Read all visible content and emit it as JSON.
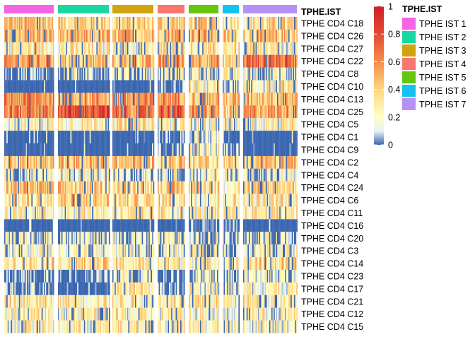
{
  "chart_data": {
    "type": "heatmap",
    "annotation_title": "TPHE.IST",
    "rows": [
      "TPHE CD4 C18",
      "TPHE CD4 C26",
      "TPHE CD4 C27",
      "TPHE CD4 C22",
      "TPHE CD4 C8",
      "TPHE CD4 C10",
      "TPHE CD4 C13",
      "TPHE CD4 C25",
      "TPHE CD4 C5",
      "TPHE CD4 C1",
      "TPHE CD4 C9",
      "TPHE CD4 C2",
      "TPHE CD4 C4",
      "TPHE CD4 C24",
      "TPHE CD4 C6",
      "TPHE CD4 C11",
      "TPHE CD4 C16",
      "TPHE CD4 C20",
      "TPHE CD4 C3",
      "TPHE CD4 C14",
      "TPHE CD4 C23",
      "TPHE CD4 C17",
      "TPHE CD4 C21",
      "TPHE CD4 C12",
      "TPHE CD4 C15"
    ],
    "groups": [
      {
        "name": "TPHE IST 1",
        "color": "#F564E3"
      },
      {
        "name": "TPHE IST 2",
        "color": "#19D7A0"
      },
      {
        "name": "TPHE IST 3",
        "color": "#D4A20E"
      },
      {
        "name": "TPHE IST 4",
        "color": "#F8766D"
      },
      {
        "name": "TPHE IST 5",
        "color": "#64C60F"
      },
      {
        "name": "TPHE IST 6",
        "color": "#13C2F1"
      },
      {
        "name": "TPHE IST 7",
        "color": "#B591F7"
      }
    ],
    "row_means": [
      [
        0.45,
        0.4,
        0.38,
        0.42,
        0.4,
        0.35,
        0.35
      ],
      [
        0.5,
        0.45,
        0.45,
        0.52,
        0.5,
        0.4,
        0.42
      ],
      [
        0.3,
        0.28,
        0.25,
        0.3,
        0.28,
        0.3,
        0.25
      ],
      [
        0.55,
        0.45,
        0.45,
        0.55,
        0.55,
        0.4,
        0.7
      ],
      [
        0.08,
        0.12,
        0.12,
        0.15,
        0.18,
        0.2,
        0.15
      ],
      [
        0.0,
        0.0,
        0.0,
        0.05,
        0.25,
        0.1,
        0.25
      ],
      [
        0.6,
        0.55,
        0.55,
        0.6,
        0.5,
        0.45,
        0.5
      ],
      [
        0.65,
        0.8,
        0.65,
        0.75,
        0.55,
        0.4,
        0.55
      ],
      [
        0.25,
        0.3,
        0.3,
        0.25,
        0.25,
        0.2,
        0.25
      ],
      [
        0.0,
        0.0,
        0.0,
        0.05,
        0.2,
        0.0,
        0.0
      ],
      [
        0.0,
        0.0,
        0.02,
        0.1,
        0.25,
        0.05,
        0.0
      ],
      [
        0.4,
        0.45,
        0.45,
        0.45,
        0.4,
        0.35,
        0.45
      ],
      [
        0.15,
        0.18,
        0.18,
        0.2,
        0.18,
        0.2,
        0.15
      ],
      [
        0.45,
        0.4,
        0.4,
        0.45,
        0.4,
        0.3,
        0.4
      ],
      [
        0.35,
        0.4,
        0.35,
        0.35,
        0.3,
        0.3,
        0.3
      ],
      [
        0.3,
        0.28,
        0.28,
        0.3,
        0.28,
        0.25,
        0.3
      ],
      [
        0.0,
        0.0,
        0.0,
        0.0,
        0.05,
        0.05,
        0.0
      ],
      [
        0.15,
        0.15,
        0.12,
        0.15,
        0.15,
        0.15,
        0.12
      ],
      [
        0.2,
        0.2,
        0.2,
        0.2,
        0.2,
        0.15,
        0.2
      ],
      [
        0.35,
        0.35,
        0.3,
        0.3,
        0.3,
        0.25,
        0.35
      ],
      [
        0.05,
        0.05,
        0.15,
        0.05,
        0.2,
        0.1,
        0.15
      ],
      [
        0.1,
        0.02,
        0.3,
        0.1,
        0.25,
        0.15,
        0.25
      ],
      [
        0.3,
        0.3,
        0.3,
        0.3,
        0.3,
        0.25,
        0.3
      ],
      [
        0.25,
        0.25,
        0.25,
        0.25,
        0.25,
        0.2,
        0.25
      ],
      [
        0.25,
        0.25,
        0.28,
        0.25,
        0.25,
        0.2,
        0.25
      ]
    ],
    "colorbar": {
      "range": [
        0,
        1
      ],
      "ticks": [
        "0",
        "0.2",
        "0.4",
        "0.6",
        "0.8",
        "1"
      ],
      "tick_values": [
        0,
        0.2,
        0.4,
        0.6,
        0.8,
        1
      ],
      "color_stops": [
        {
          "value": 0.0,
          "color": "#3B66B0"
        },
        {
          "value": 0.1,
          "color": "#E8F3F4"
        },
        {
          "value": 0.2,
          "color": "#FFFFC4"
        },
        {
          "value": 0.4,
          "color": "#FDD77E"
        },
        {
          "value": 0.6,
          "color": "#F68D4A"
        },
        {
          "value": 0.8,
          "color": "#E34A33"
        },
        {
          "value": 1.0,
          "color": "#D01F27"
        }
      ]
    },
    "legend_title": "TPHE.IST"
  }
}
